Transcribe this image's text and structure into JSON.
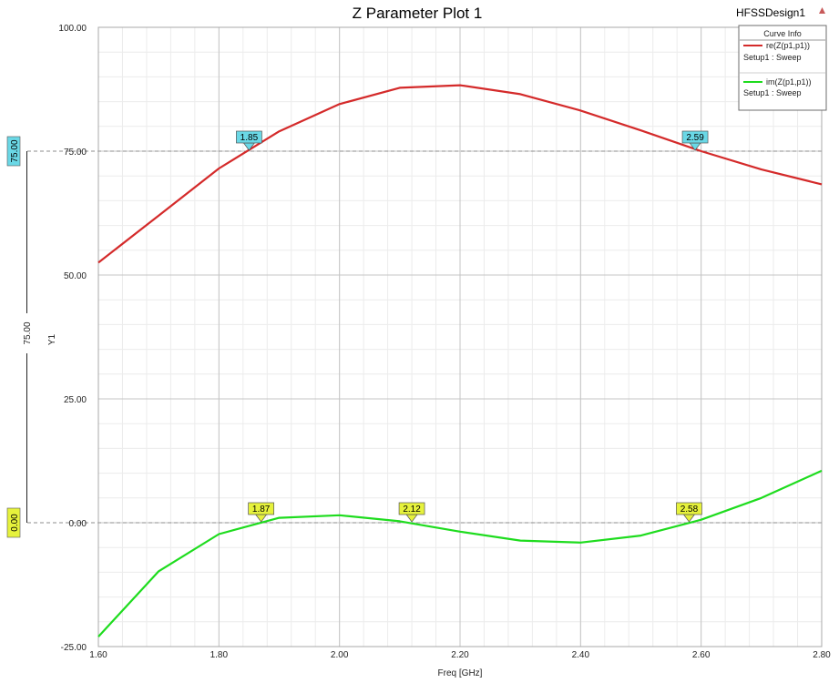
{
  "chart_data": {
    "type": "line",
    "title": "Z Parameter Plot 1",
    "design_name": "HFSSDesign1",
    "xlabel": "Freq [GHz]",
    "ylabel": "Y1",
    "xlim": [
      1.6,
      2.8
    ],
    "ylim": [
      -25,
      100
    ],
    "x_ticks": [
      "1.60",
      "1.80",
      "2.00",
      "2.20",
      "2.40",
      "2.60",
      "2.80"
    ],
    "y_ticks": [
      "-25.00",
      "0.00",
      "25.00",
      "50.00",
      "75.00",
      "100.00"
    ],
    "grid": true,
    "legend_title": "Curve Info",
    "legend_position": "top-right",
    "x": [
      1.6,
      1.7,
      1.8,
      1.9,
      2.0,
      2.1,
      2.2,
      2.3,
      2.4,
      2.5,
      2.6,
      2.7,
      2.8
    ],
    "series": [
      {
        "name": "re(Z(p1,p1))",
        "setup": "Setup1 : Sweep",
        "color": "#d42a2a",
        "values": [
          52.5,
          62.0,
          71.5,
          79.0,
          84.5,
          87.8,
          88.3,
          86.5,
          83.2,
          79.2,
          75.0,
          71.3,
          68.3
        ]
      },
      {
        "name": "im(Z(p1,p1))",
        "setup": "Setup1 : Sweep",
        "color": "#1edc1e",
        "values": [
          -23.0,
          -9.8,
          -2.3,
          1.0,
          1.5,
          0.3,
          -1.8,
          -3.6,
          -4.0,
          -2.6,
          0.6,
          5.0,
          10.5
        ]
      }
    ],
    "reference_lines": [
      {
        "y": 75.0,
        "label": "75.00",
        "color": "#6ad8e6"
      },
      {
        "y": 0.0,
        "label": "0.00",
        "color": "#e6f23c"
      }
    ],
    "side_axis_label": "75.00",
    "markers": [
      {
        "label": "1.85",
        "x": 1.85,
        "y": 75.0,
        "color": "#6ad8e6"
      },
      {
        "label": "2.59",
        "x": 2.59,
        "y": 75.0,
        "color": "#6ad8e6"
      },
      {
        "label": "1.87",
        "x": 1.87,
        "y": 0.0,
        "color": "#e6f23c"
      },
      {
        "label": "2.12",
        "x": 2.12,
        "y": 0.0,
        "color": "#e6f23c"
      },
      {
        "label": "2.58",
        "x": 2.58,
        "y": 0.0,
        "color": "#e6f23c"
      }
    ]
  }
}
